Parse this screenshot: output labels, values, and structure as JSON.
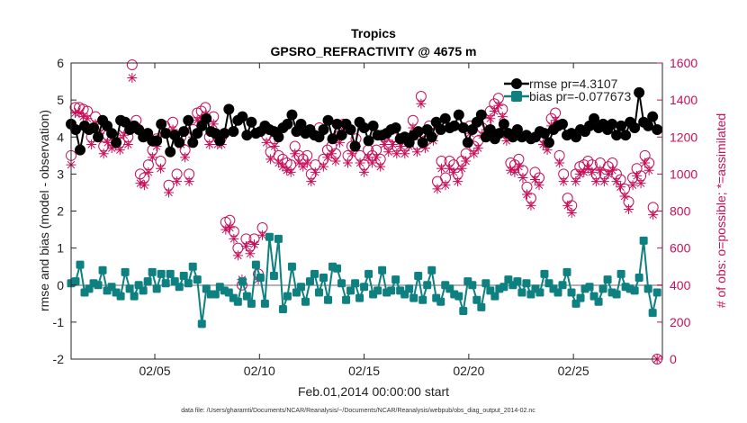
{
  "chart_data": {
    "type": "line",
    "title": "Tropics",
    "subtitle": "GPSRO_REFRACTIVITY @ 4675 m",
    "xlabel": "Feb.01,2014 00:00:00 start",
    "ylabel": "rmse and bias (model - observation)",
    "y2label": "# of obs: o=possible; *=assimilated",
    "footnote": "data file: /Users/gharamti/Documents/NCAR/Reanalysis/~/Documents/NCAR/Reanalysis/webpub/obs_diag_output_2014-02.nc",
    "xlim": [
      1.0,
      29.25
    ],
    "ylim": [
      -2,
      6
    ],
    "y2lim": [
      0,
      1600
    ],
    "x_ticks": [
      5,
      10,
      15,
      20,
      25
    ],
    "x_tick_labels": [
      "02/05",
      "02/10",
      "02/15",
      "02/20",
      "02/25"
    ],
    "y_ticks": [
      -2,
      -1,
      0,
      1,
      2,
      3,
      4,
      5,
      6
    ],
    "y_tick_labels": [
      "-2",
      "-1",
      "0",
      "1",
      "2",
      "3",
      "4",
      "5",
      "6"
    ],
    "y2_ticks": [
      0,
      200,
      400,
      600,
      800,
      1000,
      1200,
      1400,
      1600
    ],
    "y2_tick_labels": [
      "0",
      "200",
      "400",
      "600",
      "800",
      "1000",
      "1200",
      "1400",
      "1600"
    ],
    "legend_position": "top-right",
    "colors": {
      "rmse": "#000000",
      "bias": "#0f8080",
      "obs": "#c8105a",
      "zero": "#b3b3b3"
    },
    "series": [
      {
        "name": "rmse",
        "legend": "rmse pr=4.3107",
        "axis": "left",
        "values": [
          4.35,
          4.2,
          3.65,
          4.3,
          4.2,
          4.25,
          4.0,
          4.45,
          4.3,
          4.1,
          3.85,
          4.45,
          4.4,
          4.2,
          4.3,
          4.2,
          4.0,
          4.1,
          3.9,
          3.9,
          4.35,
          4.1,
          3.6,
          4.05,
          3.85,
          4.15,
          4.45,
          3.85,
          4.1,
          4.3,
          4.5,
          4.15,
          4.1,
          3.9,
          4.1,
          4.75,
          4.15,
          4.45,
          4.55,
          4.05,
          4.4,
          4.1,
          4.15,
          4.3,
          4.2,
          4.15,
          4.0,
          4.25,
          4.35,
          4.6,
          4.15,
          4.35,
          4.1,
          4.2,
          4.05,
          4.0,
          4.2,
          4.45,
          3.95,
          4.35,
          4.05,
          4.35,
          4.2,
          3.75,
          4.4,
          4.25,
          3.9,
          4.3,
          4.05,
          4.05,
          4.1,
          4.2,
          4.25,
          3.95,
          4.0,
          3.85,
          4.05,
          4.15,
          3.85,
          4.2,
          4.0,
          4.4,
          4.2,
          4.5,
          4.25,
          4.3,
          4.6,
          4.25,
          3.85,
          4.2,
          4.4,
          4.6,
          4.0,
          4.2,
          3.95,
          4.1,
          4.35,
          4.1,
          4.0,
          4.2,
          4.0,
          4.05,
          3.95,
          4.0,
          4.15,
          4.1,
          3.85,
          4.2,
          4.3,
          4.35,
          4.05,
          4.1,
          4.0,
          4.2,
          4.15,
          4.3,
          4.5,
          4.25,
          4.35,
          4.2,
          4.35,
          4.05,
          4.3,
          4.05,
          4.4,
          4.25,
          5.2,
          4.4,
          4.3,
          4.55,
          4.2
        ]
      },
      {
        "name": "bias",
        "legend": "bias pr=-0.077673",
        "axis": "left",
        "values": [
          0.05,
          0.1,
          0.55,
          -0.2,
          -0.1,
          0.05,
          0.0,
          0.4,
          -0.15,
          -0.05,
          -0.2,
          -0.3,
          0.35,
          -0.1,
          -0.3,
          0.0,
          -0.15,
          0.1,
          0.35,
          -0.1,
          0.3,
          0.05,
          0.3,
          0.1,
          -0.05,
          0.25,
          0.05,
          0.5,
          0.15,
          -1.05,
          -0.1,
          -0.25,
          -0.25,
          -0.05,
          -0.15,
          -0.2,
          -0.35,
          -0.45,
          0.1,
          -0.3,
          -0.5,
          0.55,
          0.2,
          -0.5,
          1.3,
          0.25,
          1.25,
          -0.65,
          -0.3,
          0.5,
          -0.2,
          -0.05,
          -0.45,
          0.1,
          0.3,
          -0.2,
          0.2,
          -0.4,
          0.5,
          0.45,
          0.05,
          -0.4,
          -0.15,
          0.05,
          -0.35,
          -0.05,
          0.3,
          -0.25,
          -0.15,
          0.4,
          -0.2,
          -0.15,
          0.15,
          -0.15,
          -0.25,
          -0.1,
          -0.35,
          0.25,
          -0.4,
          0.0,
          0.4,
          -0.35,
          -0.45,
          0.0,
          -0.1,
          -0.25,
          -0.3,
          -0.7,
          0.1,
          0.0,
          -0.4,
          -0.6,
          0.05,
          -0.15,
          -0.3,
          -0.1,
          -0.05,
          0.15,
          0.0,
          0.1,
          -0.2,
          0.05,
          -0.25,
          -0.1,
          -0.2,
          0.3,
          0.05,
          -0.1,
          -0.2,
          0.0,
          0.35,
          -0.2,
          -0.5,
          -0.35,
          -0.1,
          -0.05,
          -0.3,
          -0.45,
          -0.1,
          0.15,
          -0.2,
          -0.25,
          0.3,
          -0.05,
          -0.1,
          -0.15,
          0.2,
          1.2,
          -0.1,
          -0.75,
          -0.2
        ]
      },
      {
        "name": "obs_possible",
        "legend": "o=possible",
        "axis": "right",
        "values": [
          1100,
          1360,
          1360,
          1350,
          1340,
          1200,
          1310,
          1260,
          1150,
          1210,
          1180,
          1200,
          1170,
          1250,
          1200,
          1590,
          1290,
          1000,
          980,
          1050,
          1130,
          1190,
          1070,
          1260,
          940,
          1280,
          1000,
          1200,
          1130,
          1000,
          1240,
          1330,
          1340,
          1360,
          1200,
          1310,
          1200,
          1200,
          740,
          750,
          690,
          600,
          400,
          650,
          610,
          650,
          460,
          710,
          1210,
          1120,
          1190,
          1100,
          1080,
          1060,
          1050,
          1150,
          1100,
          1080,
          1100,
          1000,
          1050,
          1250,
          1080,
          1130,
          1150,
          1110,
          1210,
          1270,
          1100,
          1150,
          1190,
          1100,
          1050,
          1130,
          1100,
          1130,
          1080,
          1200,
          1160,
          1200,
          1150,
          1190,
          1150,
          1190,
          1290,
          1160,
          1420,
          1180,
          1260,
          1220,
          960,
          1070,
          980,
          1070,
          1050,
          1000,
          1070,
          1110,
          1260,
          1150,
          1180,
          1250,
          1280,
          1340,
          1380,
          1410,
          1350,
          1220,
          1060,
          1050,
          1080,
          1020,
          930,
          870,
          1010,
          980,
          1200,
          1170,
          1300,
          1330,
          1100,
          1000,
          870,
          830,
          1000,
          1040,
          1050,
          1070,
          1050,
          1000,
          1060,
          1000,
          1040,
          1060,
          1000,
          970,
          920,
          850,
          980,
          1030,
          990,
          1100,
          1060,
          820,
          0
        ]
      },
      {
        "name": "obs_assimilated",
        "legend": "*=assimilated",
        "axis": "right",
        "values": [
          1050,
          1330,
          1330,
          1310,
          1300,
          1160,
          1270,
          1220,
          1110,
          1170,
          1140,
          1160,
          1130,
          1210,
          1160,
          1520,
          1250,
          950,
          940,
          1010,
          1090,
          1150,
          1030,
          1220,
          900,
          1240,
          960,
          1160,
          1090,
          960,
          1200,
          1290,
          1300,
          1320,
          1160,
          1270,
          1160,
          1160,
          700,
          710,
          650,
          560,
          430,
          610,
          570,
          620,
          430,
          670,
          1170,
          1080,
          1150,
          1060,
          1040,
          1020,
          1010,
          1110,
          1060,
          1040,
          1060,
          960,
          1010,
          1210,
          1040,
          1090,
          1110,
          1070,
          1170,
          1230,
          1060,
          1110,
          1150,
          1060,
          1010,
          1090,
          1060,
          1090,
          1040,
          1160,
          1120,
          1160,
          1110,
          1150,
          1110,
          1150,
          1250,
          1120,
          1380,
          1140,
          1220,
          1180,
          920,
          1030,
          940,
          1030,
          1010,
          960,
          1030,
          1070,
          1220,
          1110,
          1140,
          1210,
          1240,
          1300,
          1340,
          1370,
          1310,
          1180,
          1020,
          1010,
          1040,
          980,
          890,
          830,
          970,
          940,
          1160,
          1130,
          1260,
          1290,
          1060,
          960,
          830,
          790,
          960,
          1000,
          1010,
          1030,
          1010,
          960,
          1020,
          960,
          1000,
          1020,
          960,
          930,
          880,
          810,
          940,
          990,
          950,
          1060,
          1020,
          780,
          0
        ]
      }
    ]
  }
}
